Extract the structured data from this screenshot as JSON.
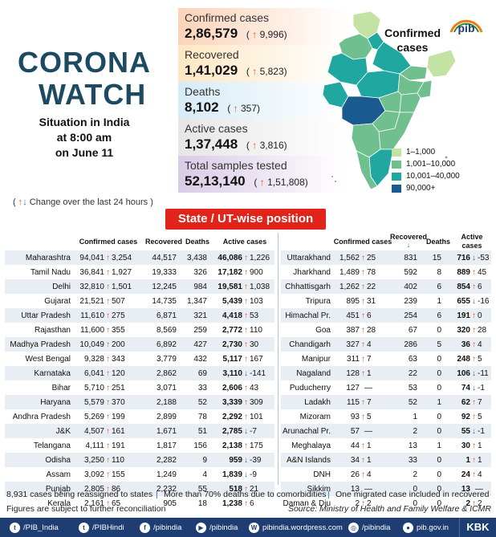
{
  "header": {
    "title_line1": "CORONA",
    "title_line2": "WATCH",
    "situation_line1": "Situation in India",
    "situation_line2": "at 8:00 am",
    "situation_line3": "on June 11"
  },
  "stats": [
    {
      "label": "Confirmed cases",
      "value": "2,86,579",
      "change": "9,996"
    },
    {
      "label": "Recovered",
      "value": "1,41,029",
      "change": "5,823"
    },
    {
      "label": "Deaths",
      "value": "8,102",
      "change": "357"
    },
    {
      "label": "Active cases",
      "value": "1,37,448",
      "change": "3,816"
    },
    {
      "label": "Total samples tested",
      "value": "52,13,140",
      "change": "1,51,808"
    }
  ],
  "change_note": "Change over the last 24 hours )",
  "map": {
    "title_line1": "Confirmed",
    "title_line2": "cases",
    "legend": [
      {
        "label": "1–1,000",
        "color": "#c3e3a4"
      },
      {
        "label": "1,001–10,000",
        "color": "#6fbf8f"
      },
      {
        "label": "10,001–40,000",
        "color": "#1fa7a0"
      },
      {
        "label": "90,000+",
        "color": "#1a5b8f"
      }
    ]
  },
  "logo_text": "pib",
  "section_title": "State / UT-wise position",
  "columns": {
    "confirmed": "Confirmed cases",
    "recovered": "Recovered",
    "deaths": "Deaths",
    "active": "Active cases"
  },
  "left_rows": [
    {
      "state": "Maharashtra",
      "conf": "94,041",
      "cdir": "up",
      "cchg": "3,254",
      "rec": "44,517",
      "deaths": "3,438",
      "act": "46,086",
      "adir": "up",
      "achg": "1,226"
    },
    {
      "state": "Tamil Nadu",
      "conf": "36,841",
      "cdir": "up",
      "cchg": "1,927",
      "rec": "19,333",
      "deaths": "326",
      "act": "17,182",
      "adir": "up",
      "achg": "900"
    },
    {
      "state": "Delhi",
      "conf": "32,810",
      "cdir": "up",
      "cchg": "1,501",
      "rec": "12,245",
      "deaths": "984",
      "act": "19,581",
      "adir": "up",
      "achg": "1,038"
    },
    {
      "state": "Gujarat",
      "conf": "21,521",
      "cdir": "up",
      "cchg": "507",
      "rec": "14,735",
      "deaths": "1,347",
      "act": "5,439",
      "adir": "up",
      "achg": "103"
    },
    {
      "state": "Uttar Pradesh",
      "conf": "11,610",
      "cdir": "up",
      "cchg": "275",
      "rec": "6,871",
      "deaths": "321",
      "act": "4,418",
      "adir": "up",
      "achg": "53"
    },
    {
      "state": "Rajasthan",
      "conf": "11,600",
      "cdir": "up",
      "cchg": "355",
      "rec": "8,569",
      "deaths": "259",
      "act": "2,772",
      "adir": "up",
      "achg": "110"
    },
    {
      "state": "Madhya Pradesh",
      "conf": "10,049",
      "cdir": "up",
      "cchg": "200",
      "rec": "6,892",
      "deaths": "427",
      "act": "2,730",
      "adir": "up",
      "achg": "30"
    },
    {
      "state": "West Bengal",
      "conf": "9,328",
      "cdir": "up",
      "cchg": "343",
      "rec": "3,779",
      "deaths": "432",
      "act": "5,117",
      "adir": "up",
      "achg": "167"
    },
    {
      "state": "Karnataka",
      "conf": "6,041",
      "cdir": "up",
      "cchg": "120",
      "rec": "2,862",
      "deaths": "69",
      "act": "3,110",
      "adir": "down",
      "achg": "-141"
    },
    {
      "state": "Bihar",
      "conf": "5,710",
      "cdir": "up",
      "cchg": "251",
      "rec": "3,071",
      "deaths": "33",
      "act": "2,606",
      "adir": "up",
      "achg": "43"
    },
    {
      "state": "Haryana",
      "conf": "5,579",
      "cdir": "up",
      "cchg": "370",
      "rec": "2,188",
      "deaths": "52",
      "act": "3,339",
      "adir": "up",
      "achg": "309"
    },
    {
      "state": "Andhra Pradesh",
      "conf": "5,269",
      "cdir": "up",
      "cchg": "199",
      "rec": "2,899",
      "deaths": "78",
      "act": "2,292",
      "adir": "up",
      "achg": "101"
    },
    {
      "state": "J&K",
      "conf": "4,507",
      "cdir": "up",
      "cchg": "161",
      "rec": "1,671",
      "deaths": "51",
      "act": "2,785",
      "adir": "down",
      "achg": "-7"
    },
    {
      "state": "Telangana",
      "conf": "4,111",
      "cdir": "up",
      "cchg": "191",
      "rec": "1,817",
      "deaths": "156",
      "act": "2,138",
      "adir": "up",
      "achg": "175"
    },
    {
      "state": "Odisha",
      "conf": "3,250",
      "cdir": "up",
      "cchg": "110",
      "rec": "2,282",
      "deaths": "9",
      "act": "959",
      "adir": "down",
      "achg": "-39"
    },
    {
      "state": "Assam",
      "conf": "3,092",
      "cdir": "up",
      "cchg": "155",
      "rec": "1,249",
      "deaths": "4",
      "act": "1,839",
      "adir": "down",
      "achg": "-9"
    },
    {
      "state": "Punjab",
      "conf": "2,805",
      "cdir": "up",
      "cchg": "86",
      "rec": "2,232",
      "deaths": "55",
      "act": "518",
      "adir": "up",
      "achg": "21"
    },
    {
      "state": "Kerala",
      "conf": "2,161",
      "cdir": "up",
      "cchg": "65",
      "rec": "905",
      "deaths": "18",
      "act": "1,238",
      "adir": "up",
      "achg": "6"
    }
  ],
  "right_rows": [
    {
      "state": "Uttarakhand",
      "conf": "1,562",
      "cdir": "up",
      "cchg": "25",
      "rec": "831",
      "deaths": "15",
      "act": "716",
      "adir": "down",
      "achg": "-53"
    },
    {
      "state": "Jharkhand",
      "conf": "1,489",
      "cdir": "up",
      "cchg": "78",
      "rec": "592",
      "deaths": "8",
      "act": "889",
      "adir": "up",
      "achg": "45"
    },
    {
      "state": "Chhattisgarh",
      "conf": "1,262",
      "cdir": "up",
      "cchg": "22",
      "rec": "402",
      "deaths": "6",
      "act": "854",
      "adir": "up",
      "achg": "6"
    },
    {
      "state": "Tripura",
      "conf": "895",
      "cdir": "up",
      "cchg": "31",
      "rec": "239",
      "deaths": "1",
      "act": "655",
      "adir": "down",
      "achg": "-16"
    },
    {
      "state": "Himachal Pr.",
      "conf": "451",
      "cdir": "up",
      "cchg": "6",
      "rec": "254",
      "deaths": "6",
      "act": "191",
      "adir": "up",
      "achg": "0"
    },
    {
      "state": "Goa",
      "conf": "387",
      "cdir": "up",
      "cchg": "28",
      "rec": "67",
      "deaths": "0",
      "act": "320",
      "adir": "up",
      "achg": "28"
    },
    {
      "state": "Chandigarh",
      "conf": "327",
      "cdir": "up",
      "cchg": "4",
      "rec": "286",
      "deaths": "5",
      "act": "36",
      "adir": "up",
      "achg": "4"
    },
    {
      "state": "Manipur",
      "conf": "311",
      "cdir": "up",
      "cchg": "7",
      "rec": "63",
      "deaths": "0",
      "act": "248",
      "adir": "up",
      "achg": "5"
    },
    {
      "state": "Nagaland",
      "conf": "128",
      "cdir": "up",
      "cchg": "1",
      "rec": "22",
      "deaths": "0",
      "act": "106",
      "adir": "down",
      "achg": "-11"
    },
    {
      "state": "Puducherry",
      "conf": "127",
      "cdir": "none",
      "cchg": "—",
      "rec": "53",
      "deaths": "0",
      "act": "74",
      "adir": "down",
      "achg": "-1"
    },
    {
      "state": "Ladakh",
      "conf": "115",
      "cdir": "up",
      "cchg": "7",
      "rec": "52",
      "deaths": "1",
      "act": "62",
      "adir": "up",
      "achg": "7"
    },
    {
      "state": "Mizoram",
      "conf": "93",
      "cdir": "up",
      "cchg": "5",
      "rec": "1",
      "deaths": "0",
      "act": "92",
      "adir": "up",
      "achg": "5"
    },
    {
      "state": "Arunachal Pr.",
      "conf": "57",
      "cdir": "none",
      "cchg": "—",
      "rec": "2",
      "deaths": "0",
      "act": "55",
      "adir": "down",
      "achg": "-1"
    },
    {
      "state": "Meghalaya",
      "conf": "44",
      "cdir": "up",
      "cchg": "1",
      "rec": "13",
      "deaths": "1",
      "act": "30",
      "adir": "up",
      "achg": "1"
    },
    {
      "state": "A&N Islands",
      "conf": "34",
      "cdir": "up",
      "cchg": "1",
      "rec": "33",
      "deaths": "0",
      "act": "1",
      "adir": "up",
      "achg": "1"
    },
    {
      "state": "DNH",
      "conf": "26",
      "cdir": "up",
      "cchg": "4",
      "rec": "2",
      "deaths": "0",
      "act": "24",
      "adir": "up",
      "achg": "4"
    },
    {
      "state": "Sikkim",
      "conf": "13",
      "cdir": "none",
      "cchg": "—",
      "rec": "0",
      "deaths": "0",
      "act": "13",
      "adir": "none",
      "achg": "—"
    },
    {
      "state": "Daman & Diu",
      "conf": "2",
      "cdir": "up",
      "cchg": "2",
      "rec": "0",
      "deaths": "0",
      "act": "2",
      "adir": "up",
      "achg": "2"
    }
  ],
  "footnotes": {
    "note1": "8,931 cases being reassigned to states",
    "note2": "More than 70% deaths due to comorbidities",
    "note3": "One migrated case included in recovered",
    "note4": "Figures are subject to further reconciliation",
    "source": "Source: Ministry of Health and Family Welfare & ICMR"
  },
  "bottom_bar": [
    {
      "icon": "twitter-icon",
      "text": "/PIB_India"
    },
    {
      "icon": "twitter-icon",
      "text": "/PIBHindi"
    },
    {
      "icon": "facebook-icon",
      "text": "/pibindia"
    },
    {
      "icon": "youtube-icon",
      "text": "/pibindia"
    },
    {
      "icon": "wordpress-icon",
      "text": "pibindia.wordpress.com"
    },
    {
      "icon": "instagram-icon",
      "text": "/pibindia"
    },
    {
      "icon": "globe-icon",
      "text": "pib.gov.in"
    }
  ],
  "brand": "KBK"
}
